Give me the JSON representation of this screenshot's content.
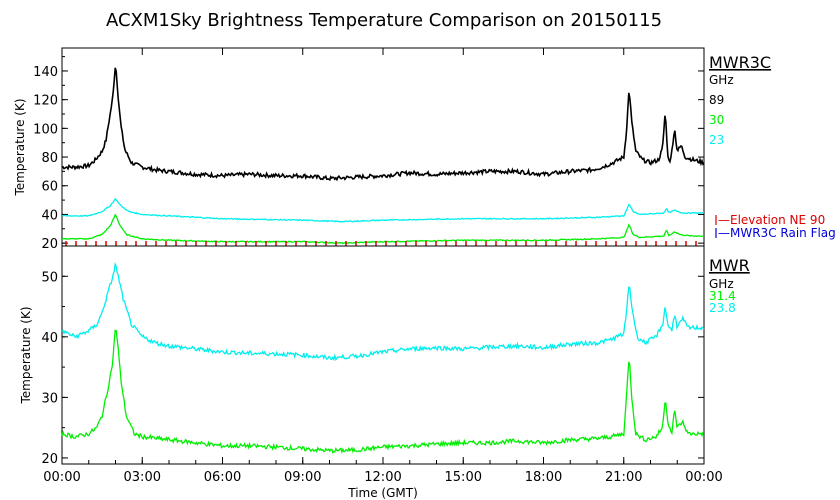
{
  "title": "ACXM1Sky Brightness Temperature Comparison on 20150115",
  "chart_data": [
    {
      "type": "line",
      "instrument": "MWR3C",
      "unit_label": "GHz",
      "ylabel": "Temperature (K)",
      "ylim": [
        18,
        156
      ],
      "yticks": [
        20,
        40,
        60,
        80,
        100,
        120,
        140
      ],
      "xlim": [
        0,
        24
      ],
      "series": [
        {
          "name": "89",
          "color": "#000000",
          "points": [
            [
              0,
              73
            ],
            [
              0.5,
              73
            ],
            [
              1.0,
              74
            ],
            [
              1.25,
              78
            ],
            [
              1.5,
              84
            ],
            [
              1.65,
              92
            ],
            [
              1.8,
              110
            ],
            [
              1.9,
              122
            ],
            [
              2.0,
              146
            ],
            [
              2.1,
              122
            ],
            [
              2.2,
              102
            ],
            [
              2.35,
              85
            ],
            [
              2.6,
              76
            ],
            [
              3.0,
              73
            ],
            [
              3.5,
              71
            ],
            [
              4.0,
              70
            ],
            [
              5.0,
              68
            ],
            [
              6.0,
              67
            ],
            [
              7.0,
              68
            ],
            [
              8.0,
              67
            ],
            [
              9.0,
              67
            ],
            [
              10.0,
              65
            ],
            [
              11.0,
              66
            ],
            [
              12.0,
              67
            ],
            [
              13.0,
              69
            ],
            [
              14.0,
              68
            ],
            [
              15.0,
              69
            ],
            [
              16.0,
              70
            ],
            [
              17.0,
              70
            ],
            [
              18.0,
              68
            ],
            [
              19.0,
              70
            ],
            [
              19.8,
              71
            ],
            [
              20.2,
              73
            ],
            [
              20.6,
              76
            ],
            [
              21.0,
              80
            ],
            [
              21.1,
              98
            ],
            [
              21.2,
              128
            ],
            [
              21.3,
              104
            ],
            [
              21.45,
              84
            ],
            [
              21.7,
              78
            ],
            [
              22.0,
              76
            ],
            [
              22.3,
              78
            ],
            [
              22.45,
              86
            ],
            [
              22.55,
              112
            ],
            [
              22.65,
              80
            ],
            [
              22.75,
              77
            ],
            [
              22.9,
              100
            ],
            [
              23.0,
              84
            ],
            [
              23.15,
              88
            ],
            [
              23.3,
              80
            ],
            [
              23.6,
              78
            ],
            [
              24.0,
              76
            ]
          ]
        },
        {
          "name": "30",
          "color": "#00ee00",
          "points": [
            [
              0,
              23
            ],
            [
              1.0,
              23
            ],
            [
              1.5,
              26
            ],
            [
              1.8,
              32
            ],
            [
              2.0,
              40
            ],
            [
              2.15,
              33
            ],
            [
              2.4,
              26
            ],
            [
              3.0,
              23
            ],
            [
              4.0,
              22
            ],
            [
              6.0,
              21
            ],
            [
              9.0,
              21
            ],
            [
              10.5,
              20
            ],
            [
              12.0,
              21
            ],
            [
              15.0,
              22
            ],
            [
              18.0,
              22
            ],
            [
              20.0,
              23
            ],
            [
              21.0,
              24
            ],
            [
              21.2,
              33
            ],
            [
              21.35,
              26
            ],
            [
              21.6,
              24
            ],
            [
              22.5,
              25
            ],
            [
              22.6,
              29
            ],
            [
              22.7,
              25
            ],
            [
              22.9,
              28
            ],
            [
              23.1,
              26
            ],
            [
              23.5,
              25
            ],
            [
              24.0,
              25
            ]
          ]
        },
        {
          "name": "23",
          "color": "#00eeee",
          "points": [
            [
              0,
              39
            ],
            [
              1.0,
              39
            ],
            [
              1.5,
              42
            ],
            [
              1.8,
              46
            ],
            [
              2.0,
              51
            ],
            [
              2.2,
              46
            ],
            [
              2.5,
              42
            ],
            [
              3.0,
              40
            ],
            [
              4.0,
              39
            ],
            [
              6.0,
              37
            ],
            [
              9.0,
              36
            ],
            [
              10.5,
              35
            ],
            [
              12.0,
              36
            ],
            [
              15.0,
              37
            ],
            [
              18.0,
              37
            ],
            [
              20.0,
              38
            ],
            [
              21.0,
              39
            ],
            [
              21.2,
              47
            ],
            [
              21.35,
              42
            ],
            [
              21.6,
              40
            ],
            [
              22.5,
              41
            ],
            [
              22.6,
              44
            ],
            [
              22.7,
              41
            ],
            [
              22.9,
              43
            ],
            [
              23.2,
              41
            ],
            [
              24.0,
              41
            ]
          ]
        }
      ]
    },
    {
      "type": "line",
      "instrument": "MWR",
      "unit_label": "GHz",
      "ylabel": "Temperature (K)",
      "ylim": [
        19,
        55
      ],
      "yticks": [
        20,
        30,
        40,
        50
      ],
      "xlim": [
        0,
        24
      ],
      "xlabel": "Time (GMT)",
      "xtick_labels": [
        "00:00",
        "03:00",
        "06:00",
        "09:00",
        "12:00",
        "15:00",
        "18:00",
        "21:00",
        "00:00"
      ],
      "series": [
        {
          "name": "31.4",
          "color": "#00ee00",
          "points": [
            [
              0,
              24
            ],
            [
              0.5,
              23.5
            ],
            [
              1.0,
              24
            ],
            [
              1.3,
              25
            ],
            [
              1.5,
              27
            ],
            [
              1.7,
              31
            ],
            [
              1.9,
              36
            ],
            [
              2.0,
              42
            ],
            [
              2.1,
              38
            ],
            [
              2.2,
              33
            ],
            [
              2.4,
              27
            ],
            [
              2.7,
              24
            ],
            [
              3.0,
              23.5
            ],
            [
              4.0,
              23
            ],
            [
              5.0,
              22.5
            ],
            [
              6.0,
              22
            ],
            [
              7.0,
              22
            ],
            [
              8.0,
              21.8
            ],
            [
              9.0,
              21.5
            ],
            [
              10.0,
              21.2
            ],
            [
              11.0,
              21.3
            ],
            [
              12.0,
              21.8
            ],
            [
              13.0,
              22
            ],
            [
              14.0,
              22.3
            ],
            [
              15.0,
              22.5
            ],
            [
              16.0,
              22.5
            ],
            [
              17.0,
              22.8
            ],
            [
              18.0,
              22.5
            ],
            [
              19.0,
              23
            ],
            [
              20.0,
              23.2
            ],
            [
              20.5,
              23.5
            ],
            [
              21.0,
              24
            ],
            [
              21.1,
              30
            ],
            [
              21.2,
              37
            ],
            [
              21.3,
              30
            ],
            [
              21.45,
              24
            ],
            [
              21.8,
              23
            ],
            [
              22.2,
              23.5
            ],
            [
              22.45,
              25
            ],
            [
              22.55,
              30
            ],
            [
              22.65,
              26
            ],
            [
              22.8,
              24
            ],
            [
              22.9,
              28
            ],
            [
              23.0,
              25
            ],
            [
              23.2,
              26
            ],
            [
              23.4,
              24
            ],
            [
              24.0,
              24
            ]
          ]
        },
        {
          "name": "23.8",
          "color": "#00eeee",
          "points": [
            [
              0,
              41
            ],
            [
              0.5,
              40
            ],
            [
              1.0,
              41
            ],
            [
              1.3,
              42
            ],
            [
              1.5,
              44
            ],
            [
              1.7,
              47
            ],
            [
              1.9,
              50
            ],
            [
              2.0,
              52
            ],
            [
              2.1,
              50
            ],
            [
              2.3,
              46
            ],
            [
              2.6,
              42
            ],
            [
              3.0,
              40
            ],
            [
              3.5,
              39
            ],
            [
              4.0,
              38.5
            ],
            [
              5.0,
              38
            ],
            [
              6.0,
              37.5
            ],
            [
              7.0,
              37.3
            ],
            [
              8.0,
              37.2
            ],
            [
              9.0,
              37
            ],
            [
              10.0,
              36.5
            ],
            [
              11.0,
              36.8
            ],
            [
              12.0,
              37.5
            ],
            [
              13.0,
              38
            ],
            [
              14.0,
              38.2
            ],
            [
              15.0,
              38
            ],
            [
              16.0,
              38.3
            ],
            [
              17.0,
              38.5
            ],
            [
              18.0,
              38.2
            ],
            [
              19.0,
              38.8
            ],
            [
              20.0,
              39
            ],
            [
              20.5,
              39.5
            ],
            [
              21.0,
              40.5
            ],
            [
              21.1,
              44
            ],
            [
              21.2,
              49
            ],
            [
              21.3,
              45
            ],
            [
              21.5,
              40
            ],
            [
              21.8,
              39
            ],
            [
              22.2,
              40
            ],
            [
              22.45,
              42
            ],
            [
              22.55,
              45
            ],
            [
              22.65,
              42
            ],
            [
              22.8,
              41
            ],
            [
              22.9,
              44
            ],
            [
              23.0,
              41.5
            ],
            [
              23.2,
              43
            ],
            [
              23.4,
              41.5
            ],
            [
              24.0,
              41.5
            ]
          ]
        }
      ]
    }
  ],
  "legend_extra": [
    {
      "label": "Elevation NE 90",
      "color": "#dd0000"
    },
    {
      "label": "MWR3C Rain Flag",
      "color": "#0000dd"
    }
  ]
}
